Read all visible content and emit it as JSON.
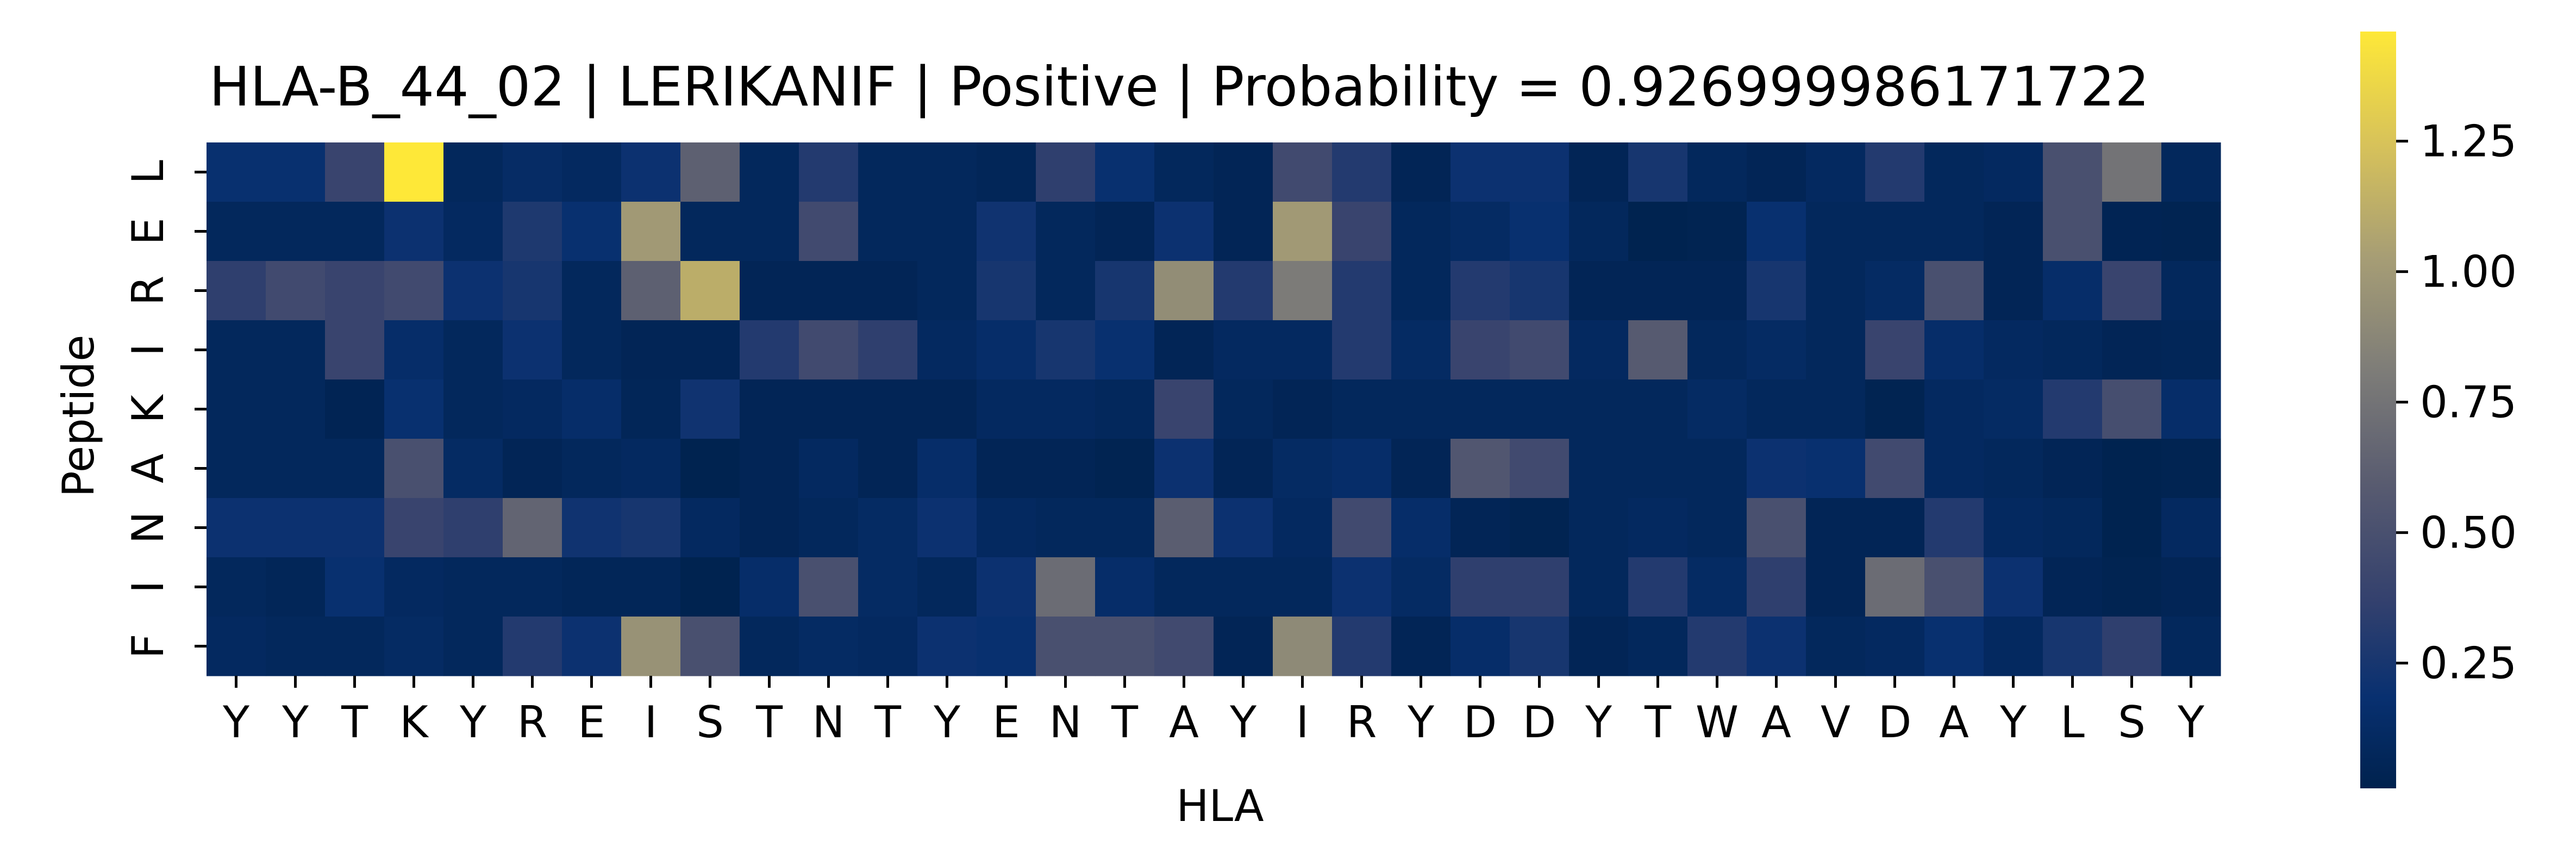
{
  "chart_data": {
    "type": "heatmap",
    "title": "HLA-B_44_02 | LERIKANIF | Positive | Probability = 0.926999986171722",
    "xlabel": "HLA",
    "ylabel": "Peptide",
    "x_categories": [
      "Y",
      "Y",
      "T",
      "K",
      "Y",
      "R",
      "E",
      "I",
      "S",
      "T",
      "N",
      "T",
      "Y",
      "E",
      "N",
      "T",
      "A",
      "Y",
      "I",
      "R",
      "Y",
      "D",
      "D",
      "Y",
      "T",
      "W",
      "A",
      "V",
      "D",
      "A",
      "Y",
      "L",
      "S",
      "Y"
    ],
    "y_categories": [
      "L",
      "E",
      "R",
      "I",
      "K",
      "A",
      "N",
      "I",
      "F"
    ],
    "colormap": "cividis",
    "colorbar": {
      "min": 0.01,
      "max": 1.46,
      "ticks": [
        0.25,
        0.5,
        0.75,
        1.0,
        1.25
      ],
      "tick_labels": [
        "0.25",
        "0.50",
        "0.75",
        "1.00",
        "1.25"
      ]
    },
    "values": [
      [
        0.18,
        0.18,
        0.4,
        1.46,
        0.08,
        0.13,
        0.1,
        0.2,
        0.62,
        0.08,
        0.3,
        0.08,
        0.08,
        0.06,
        0.35,
        0.18,
        0.08,
        0.05,
        0.45,
        0.3,
        0.05,
        0.2,
        0.2,
        0.05,
        0.25,
        0.08,
        0.05,
        0.1,
        0.3,
        0.08,
        0.1,
        0.5,
        0.75,
        0.08
      ],
      [
        0.08,
        0.08,
        0.08,
        0.2,
        0.1,
        0.28,
        0.18,
        1.0,
        0.08,
        0.08,
        0.45,
        0.08,
        0.08,
        0.22,
        0.08,
        0.05,
        0.2,
        0.05,
        1.0,
        0.4,
        0.08,
        0.12,
        0.18,
        0.08,
        0.02,
        0.03,
        0.18,
        0.08,
        0.08,
        0.08,
        0.05,
        0.5,
        0.04,
        0.03
      ],
      [
        0.35,
        0.45,
        0.4,
        0.45,
        0.2,
        0.25,
        0.08,
        0.62,
        1.12,
        0.05,
        0.05,
        0.05,
        0.08,
        0.25,
        0.08,
        0.25,
        0.92,
        0.3,
        0.8,
        0.3,
        0.08,
        0.3,
        0.25,
        0.05,
        0.05,
        0.05,
        0.25,
        0.08,
        0.12,
        0.5,
        0.05,
        0.15,
        0.4,
        0.08
      ],
      [
        0.08,
        0.08,
        0.4,
        0.15,
        0.08,
        0.2,
        0.08,
        0.05,
        0.05,
        0.3,
        0.45,
        0.35,
        0.1,
        0.15,
        0.25,
        0.18,
        0.05,
        0.1,
        0.1,
        0.3,
        0.12,
        0.4,
        0.45,
        0.1,
        0.58,
        0.08,
        0.12,
        0.08,
        0.4,
        0.15,
        0.1,
        0.08,
        0.05,
        0.06
      ],
      [
        0.08,
        0.08,
        0.04,
        0.18,
        0.08,
        0.1,
        0.15,
        0.06,
        0.22,
        0.05,
        0.05,
        0.05,
        0.05,
        0.1,
        0.1,
        0.08,
        0.4,
        0.08,
        0.05,
        0.08,
        0.08,
        0.08,
        0.08,
        0.08,
        0.08,
        0.12,
        0.08,
        0.08,
        0.03,
        0.1,
        0.12,
        0.3,
        0.48,
        0.15
      ],
      [
        0.08,
        0.08,
        0.08,
        0.5,
        0.12,
        0.05,
        0.08,
        0.1,
        0.02,
        0.05,
        0.1,
        0.05,
        0.15,
        0.05,
        0.05,
        0.03,
        0.2,
        0.05,
        0.12,
        0.15,
        0.05,
        0.55,
        0.45,
        0.08,
        0.08,
        0.08,
        0.2,
        0.18,
        0.45,
        0.1,
        0.08,
        0.05,
        0.02,
        0.03
      ],
      [
        0.2,
        0.2,
        0.2,
        0.4,
        0.35,
        0.65,
        0.22,
        0.25,
        0.1,
        0.05,
        0.08,
        0.12,
        0.2,
        0.1,
        0.08,
        0.08,
        0.6,
        0.2,
        0.1,
        0.45,
        0.15,
        0.05,
        0.03,
        0.08,
        0.1,
        0.08,
        0.5,
        0.05,
        0.05,
        0.3,
        0.1,
        0.08,
        0.02,
        0.1
      ],
      [
        0.08,
        0.06,
        0.18,
        0.1,
        0.08,
        0.08,
        0.06,
        0.06,
        0.02,
        0.15,
        0.5,
        0.12,
        0.08,
        0.2,
        0.7,
        0.15,
        0.08,
        0.08,
        0.08,
        0.2,
        0.12,
        0.35,
        0.35,
        0.08,
        0.3,
        0.12,
        0.35,
        0.05,
        0.7,
        0.5,
        0.2,
        0.05,
        0.03,
        0.05
      ],
      [
        0.1,
        0.08,
        0.08,
        0.12,
        0.08,
        0.3,
        0.2,
        0.95,
        0.5,
        0.08,
        0.12,
        0.1,
        0.2,
        0.18,
        0.5,
        0.5,
        0.45,
        0.05,
        0.9,
        0.3,
        0.05,
        0.15,
        0.25,
        0.05,
        0.08,
        0.3,
        0.2,
        0.08,
        0.1,
        0.18,
        0.1,
        0.25,
        0.35,
        0.08
      ]
    ]
  }
}
